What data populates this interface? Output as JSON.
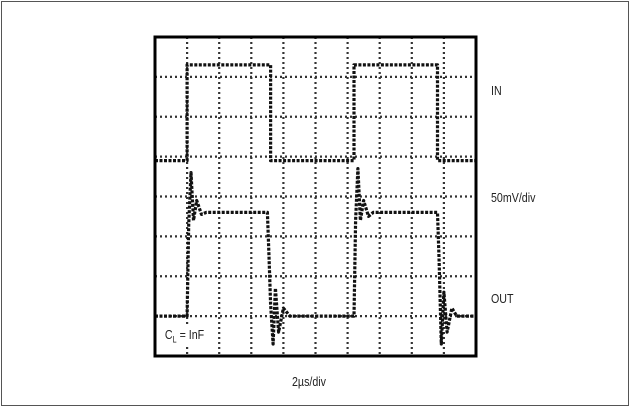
{
  "figure": {
    "in_label": "IN",
    "scale_label": "50mV/div",
    "out_label": "OUT",
    "time_label": "2µs/div",
    "cap_label_main": "C",
    "cap_label_sub": "L",
    "cap_label_value": " = InF"
  },
  "chart_data": {
    "type": "line",
    "title": "",
    "xlabel": "2µs/div",
    "ylabel": "50mV/div",
    "grid": true,
    "x_divisions": 10,
    "y_divisions": 8,
    "xlim": [
      0,
      10
    ],
    "ylim": [
      0,
      8
    ],
    "annotations": [
      "IN",
      "50mV/div",
      "OUT",
      "CL = InF"
    ],
    "series": [
      {
        "name": "IN",
        "color": "#111111",
        "x": [
          0,
          1.0,
          1.0,
          3.6,
          3.6,
          6.2,
          6.2,
          8.8,
          8.8,
          10
        ],
        "y": [
          4.9,
          4.9,
          7.3,
          7.3,
          4.9,
          4.9,
          7.3,
          7.3,
          4.9,
          4.9
        ]
      },
      {
        "name": "OUT",
        "color": "#111111",
        "x": [
          0,
          1.0,
          1.05,
          1.12,
          1.2,
          1.3,
          1.45,
          1.6,
          3.5,
          3.55,
          3.6,
          3.68,
          3.75,
          3.85,
          4.0,
          4.2,
          6.2,
          6.25,
          6.32,
          6.4,
          6.5,
          6.65,
          6.8,
          8.8,
          8.85,
          8.92,
          9.0,
          9.1,
          9.25,
          9.4,
          10
        ],
        "y": [
          1.0,
          1.0,
          3.3,
          4.6,
          3.4,
          3.9,
          3.55,
          3.6,
          3.6,
          2.5,
          1.3,
          0.3,
          1.7,
          0.6,
          1.2,
          1.0,
          1.0,
          3.4,
          4.7,
          3.4,
          3.9,
          3.5,
          3.6,
          3.6,
          2.4,
          0.3,
          1.6,
          0.6,
          1.2,
          1.0,
          1.0
        ]
      }
    ]
  }
}
